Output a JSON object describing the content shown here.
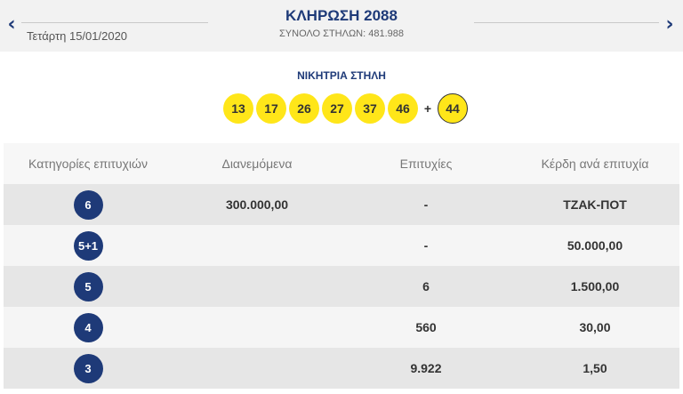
{
  "header": {
    "prev_arrow": "‹",
    "next_arrow": "›",
    "date": "Τετάρτη 15/01/2020",
    "draw_title": "ΚΛΗΡΩΣΗ 2088",
    "total_columns": "ΣΥΝΟΛΟ ΣΤΗΛΩΝ: 481.988"
  },
  "winning": {
    "label": "ΝΙΚΗΤΡΙΑ ΣΤΗΛΗ",
    "numbers": [
      "13",
      "17",
      "26",
      "27",
      "37",
      "46"
    ],
    "plus": "+",
    "joker": "44"
  },
  "table": {
    "headers": [
      "Κατηγορίες επιτυχιών",
      "Διανεμόμενα",
      "Επιτυχίες",
      "Κέρδη ανά επιτυχία"
    ],
    "rows": [
      {
        "category": "6",
        "distributed": "300.000,00",
        "winners": "-",
        "prize": "ΤΖΑΚ-ΠΟΤ"
      },
      {
        "category": "5+1",
        "distributed": "",
        "winners": "-",
        "prize": "50.000,00"
      },
      {
        "category": "5",
        "distributed": "",
        "winners": "6",
        "prize": "1.500,00"
      },
      {
        "category": "4",
        "distributed": "",
        "winners": "560",
        "prize": "30,00"
      },
      {
        "category": "3",
        "distributed": "",
        "winners": "9.922",
        "prize": "1,50"
      }
    ]
  },
  "colors": {
    "accent": "#1e3a78",
    "ball": "#ffe619"
  }
}
